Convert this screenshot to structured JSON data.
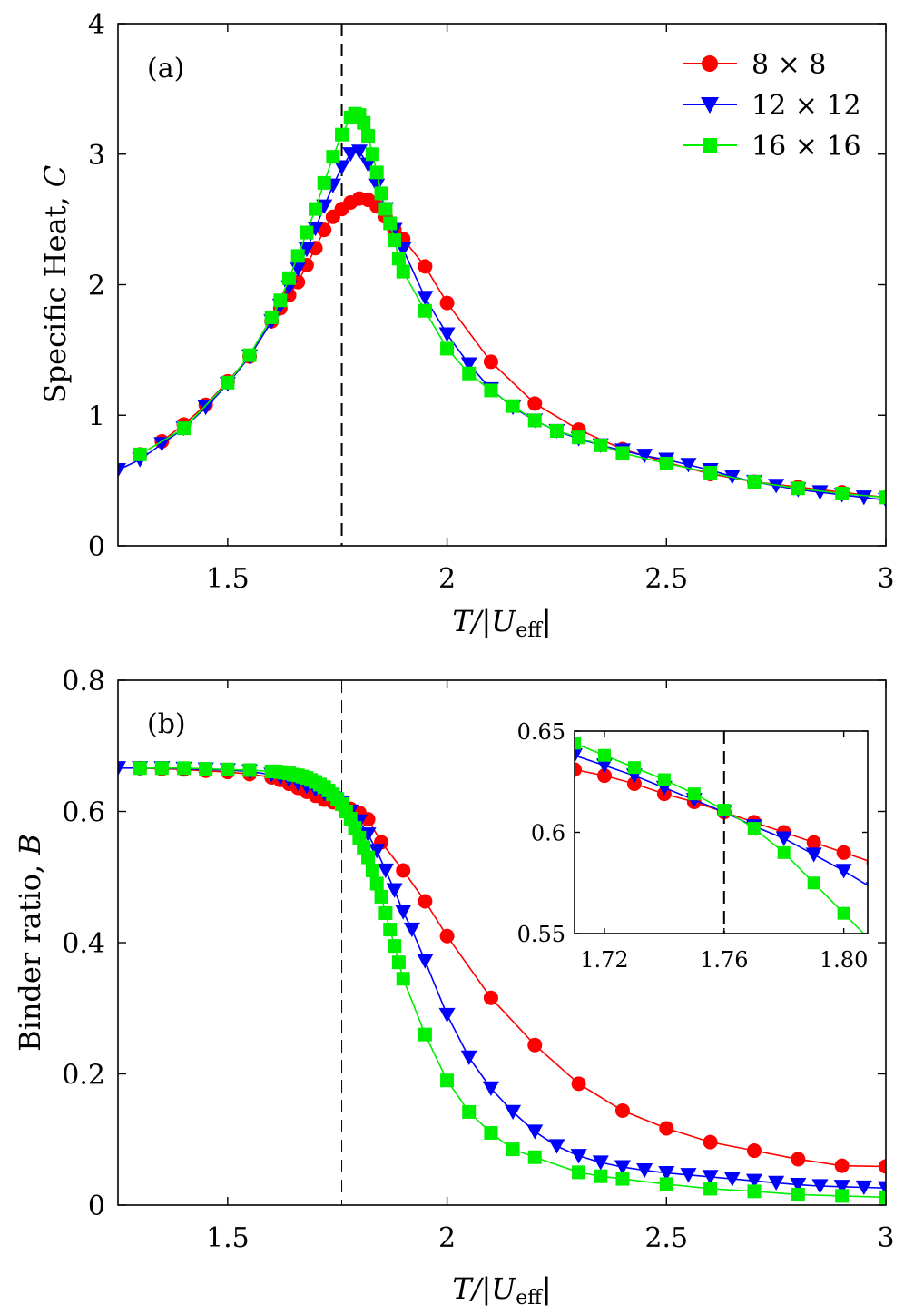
{
  "chart_data": [
    {
      "type": "line",
      "panel": "(a)",
      "xlabel_parts": {
        "pre": "T/|U",
        "sub": "eff",
        "post": "|"
      },
      "ylabel_parts": {
        "pre": "Specific Heat, ",
        "var": "C"
      },
      "xlim": [
        1.25,
        3.0
      ],
      "ylim": [
        0,
        4
      ],
      "xticks": [
        1.5,
        2,
        2.5,
        3
      ],
      "xtick_labels": [
        "1.5",
        "2",
        "2.5",
        "3"
      ],
      "yticks": [
        0,
        1,
        2,
        3,
        4
      ],
      "ytick_labels": [
        "0",
        "1",
        "2",
        "3",
        "4"
      ],
      "vline": 1.76,
      "legend": {
        "position": "top-right",
        "entries": [
          "8 × 8",
          "12 × 12",
          "16 × 16"
        ]
      },
      "series": [
        {
          "name": "8 × 8",
          "color": "#ff0000",
          "marker": "circle",
          "x": [
            1.3,
            1.35,
            1.4,
            1.45,
            1.5,
            1.55,
            1.6,
            1.62,
            1.64,
            1.66,
            1.68,
            1.7,
            1.72,
            1.74,
            1.76,
            1.78,
            1.8,
            1.82,
            1.84,
            1.86,
            1.88,
            1.9,
            1.95,
            2.0,
            2.1,
            2.2,
            2.3,
            2.4,
            2.5,
            2.6,
            2.7,
            2.8,
            2.9,
            3.0
          ],
          "y": [
            0.7,
            0.8,
            0.93,
            1.08,
            1.26,
            1.45,
            1.72,
            1.82,
            1.92,
            2.02,
            2.15,
            2.28,
            2.42,
            2.52,
            2.58,
            2.63,
            2.66,
            2.65,
            2.6,
            2.52,
            2.42,
            2.35,
            2.14,
            1.86,
            1.41,
            1.09,
            0.89,
            0.74,
            0.64,
            0.55,
            0.49,
            0.45,
            0.41,
            0.37
          ]
        },
        {
          "name": "12 × 12",
          "color": "#0000ff",
          "marker": "triangle-down",
          "x": [
            1.25,
            1.3,
            1.35,
            1.4,
            1.45,
            1.5,
            1.55,
            1.6,
            1.62,
            1.64,
            1.66,
            1.68,
            1.7,
            1.72,
            1.74,
            1.76,
            1.78,
            1.8,
            1.82,
            1.84,
            1.86,
            1.88,
            1.9,
            1.95,
            2.0,
            2.05,
            2.1,
            2.15,
            2.2,
            2.25,
            2.3,
            2.35,
            2.4,
            2.45,
            2.5,
            2.55,
            2.6,
            2.65,
            2.7,
            2.75,
            2.8,
            2.85,
            2.9,
            2.95,
            3.0
          ],
          "y": [
            0.58,
            0.66,
            0.78,
            0.9,
            1.06,
            1.24,
            1.45,
            1.72,
            1.84,
            1.98,
            2.12,
            2.27,
            2.43,
            2.6,
            2.76,
            2.9,
            3.0,
            3.02,
            2.92,
            2.76,
            2.58,
            2.42,
            2.27,
            1.9,
            1.62,
            1.39,
            1.2,
            1.06,
            0.96,
            0.88,
            0.82,
            0.77,
            0.73,
            0.69,
            0.66,
            0.62,
            0.58,
            0.53,
            0.49,
            0.46,
            0.43,
            0.41,
            0.39,
            0.37,
            0.35
          ]
        },
        {
          "name": "16 × 16",
          "color": "#00ee00",
          "marker": "square",
          "x": [
            1.3,
            1.4,
            1.5,
            1.55,
            1.6,
            1.62,
            1.64,
            1.66,
            1.68,
            1.7,
            1.72,
            1.74,
            1.76,
            1.78,
            1.79,
            1.8,
            1.81,
            1.82,
            1.83,
            1.84,
            1.85,
            1.86,
            1.87,
            1.88,
            1.89,
            1.9,
            1.95,
            2.0,
            2.05,
            2.1,
            2.15,
            2.2,
            2.25,
            2.3,
            2.35,
            2.4,
            2.5,
            2.6,
            2.7,
            2.8,
            2.9,
            3.0
          ],
          "y": [
            0.7,
            0.9,
            1.25,
            1.46,
            1.75,
            1.88,
            2.05,
            2.22,
            2.4,
            2.58,
            2.78,
            2.98,
            3.15,
            3.28,
            3.31,
            3.3,
            3.24,
            3.14,
            3.0,
            2.86,
            2.7,
            2.58,
            2.47,
            2.34,
            2.2,
            2.1,
            1.8,
            1.51,
            1.32,
            1.19,
            1.07,
            0.96,
            0.88,
            0.83,
            0.77,
            0.71,
            0.63,
            0.56,
            0.49,
            0.44,
            0.4,
            0.37
          ]
        }
      ]
    },
    {
      "type": "line",
      "panel": "(b)",
      "xlabel_parts": {
        "pre": "T/|U",
        "sub": "eff",
        "post": "|"
      },
      "ylabel_parts": {
        "pre": "Binder ratio, ",
        "var": "B"
      },
      "xlim": [
        1.25,
        3.0
      ],
      "ylim": [
        0,
        0.8
      ],
      "xticks": [
        1.5,
        2,
        2.5,
        3
      ],
      "xtick_labels": [
        "1.5",
        "2",
        "2.5",
        "3"
      ],
      "yticks": [
        0,
        0.2,
        0.4,
        0.6,
        0.8
      ],
      "ytick_labels": [
        "0",
        "0.2",
        "0.4",
        "0.6",
        "0.8"
      ],
      "vline": 1.76,
      "series": [
        {
          "name": "8 × 8",
          "color": "#ff0000",
          "marker": "circle",
          "x": [
            1.3,
            1.35,
            1.4,
            1.45,
            1.5,
            1.55,
            1.6,
            1.62,
            1.64,
            1.66,
            1.68,
            1.7,
            1.72,
            1.74,
            1.76,
            1.78,
            1.8,
            1.82,
            1.85,
            1.9,
            1.95,
            2.0,
            2.1,
            2.2,
            2.3,
            2.4,
            2.5,
            2.6,
            2.7,
            2.8,
            2.9,
            3.0
          ],
          "y": [
            0.666,
            0.665,
            0.664,
            0.662,
            0.66,
            0.657,
            0.652,
            0.648,
            0.642,
            0.636,
            0.63,
            0.624,
            0.618,
            0.614,
            0.61,
            0.604,
            0.598,
            0.588,
            0.553,
            0.51,
            0.463,
            0.41,
            0.316,
            0.244,
            0.185,
            0.144,
            0.117,
            0.096,
            0.083,
            0.07,
            0.06,
            0.059
          ]
        },
        {
          "name": "12 × 12",
          "color": "#0000ff",
          "marker": "triangle-down",
          "x": [
            1.25,
            1.3,
            1.35,
            1.4,
            1.45,
            1.5,
            1.55,
            1.6,
            1.62,
            1.64,
            1.66,
            1.68,
            1.7,
            1.72,
            1.74,
            1.76,
            1.78,
            1.8,
            1.82,
            1.84,
            1.86,
            1.88,
            1.9,
            1.92,
            1.95,
            2.0,
            2.05,
            2.1,
            2.15,
            2.2,
            2.25,
            2.3,
            2.35,
            2.4,
            2.45,
            2.5,
            2.55,
            2.6,
            2.65,
            2.7,
            2.75,
            2.8,
            2.85,
            2.9,
            2.95,
            3.0
          ],
          "y": [
            0.666,
            0.666,
            0.666,
            0.665,
            0.664,
            0.663,
            0.661,
            0.656,
            0.652,
            0.648,
            0.643,
            0.638,
            0.633,
            0.627,
            0.62,
            0.612,
            0.6,
            0.585,
            0.565,
            0.54,
            0.51,
            0.48,
            0.447,
            0.42,
            0.372,
            0.29,
            0.225,
            0.178,
            0.142,
            0.112,
            0.09,
            0.075,
            0.065,
            0.058,
            0.053,
            0.049,
            0.046,
            0.043,
            0.04,
            0.037,
            0.034,
            0.031,
            0.029,
            0.028,
            0.027,
            0.026
          ]
        },
        {
          "name": "16 × 16",
          "color": "#00ee00",
          "marker": "square",
          "x": [
            1.3,
            1.35,
            1.4,
            1.45,
            1.5,
            1.55,
            1.6,
            1.61,
            1.62,
            1.63,
            1.64,
            1.65,
            1.66,
            1.67,
            1.68,
            1.69,
            1.7,
            1.71,
            1.72,
            1.73,
            1.74,
            1.75,
            1.76,
            1.77,
            1.78,
            1.79,
            1.8,
            1.81,
            1.82,
            1.83,
            1.84,
            1.85,
            1.86,
            1.87,
            1.88,
            1.89,
            1.9,
            1.95,
            2.0,
            2.05,
            2.1,
            2.15,
            2.2,
            2.3,
            2.35,
            2.4,
            2.5,
            2.6,
            2.7,
            2.8,
            2.9,
            3.0
          ],
          "y": [
            0.666,
            0.666,
            0.666,
            0.665,
            0.664,
            0.663,
            0.661,
            0.661,
            0.66,
            0.659,
            0.658,
            0.656,
            0.655,
            0.653,
            0.651,
            0.648,
            0.645,
            0.641,
            0.637,
            0.632,
            0.626,
            0.619,
            0.611,
            0.6,
            0.589,
            0.575,
            0.56,
            0.545,
            0.53,
            0.51,
            0.49,
            0.47,
            0.445,
            0.42,
            0.395,
            0.37,
            0.345,
            0.26,
            0.19,
            0.142,
            0.11,
            0.085,
            0.073,
            0.05,
            0.044,
            0.04,
            0.032,
            0.025,
            0.021,
            0.016,
            0.014,
            0.012
          ]
        }
      ],
      "inset": {
        "xlim": [
          1.71,
          1.808
        ],
        "ylim": [
          0.55,
          0.65
        ],
        "xticks": [
          1.72,
          1.76,
          1.8
        ],
        "xtick_labels": [
          "1.72",
          "1.76",
          "1.80"
        ],
        "yticks": [
          0.55,
          0.6,
          0.65
        ],
        "ytick_labels": [
          "0.55",
          "0.6",
          "0.65"
        ],
        "vline": 1.76,
        "series": [
          {
            "name": "8 × 8",
            "color": "#ff0000",
            "marker": "circle",
            "x": [
              1.71,
              1.72,
              1.73,
              1.74,
              1.75,
              1.76,
              1.77,
              1.78,
              1.79,
              1.8,
              1.81
            ],
            "y": [
              0.631,
              0.628,
              0.624,
              0.619,
              0.615,
              0.61,
              0.605,
              0.6,
              0.595,
              0.59,
              0.585
            ]
          },
          {
            "name": "12 × 12",
            "color": "#0000ff",
            "marker": "triangle-down",
            "x": [
              1.71,
              1.72,
              1.73,
              1.74,
              1.75,
              1.76,
              1.77,
              1.78,
              1.79,
              1.8,
              1.81
            ],
            "y": [
              0.638,
              0.633,
              0.628,
              0.622,
              0.616,
              0.61,
              0.603,
              0.597,
              0.589,
              0.581,
              0.572
            ]
          },
          {
            "name": "16 × 16",
            "color": "#00ee00",
            "marker": "square",
            "x": [
              1.71,
              1.72,
              1.73,
              1.74,
              1.75,
              1.76,
              1.77,
              1.78,
              1.79,
              1.8,
              1.81
            ],
            "y": [
              0.644,
              0.638,
              0.632,
              0.626,
              0.619,
              0.611,
              0.602,
              0.59,
              0.575,
              0.56,
              0.545
            ]
          }
        ]
      }
    }
  ]
}
